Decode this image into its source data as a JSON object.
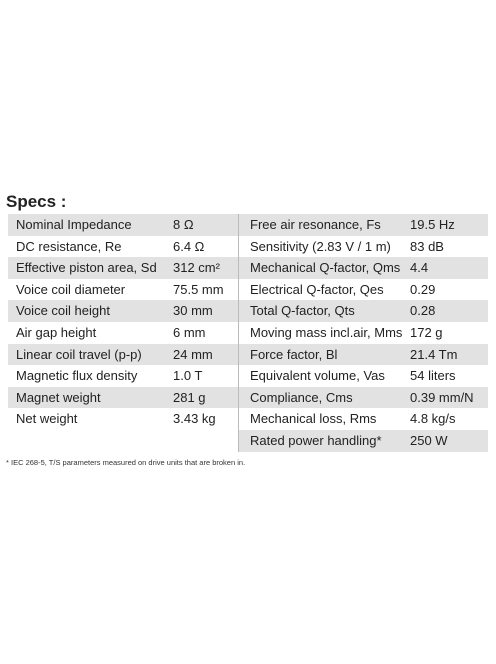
{
  "heading": "Specs :",
  "table": {
    "left": [
      [
        "Nominal Impedance",
        "8 Ω"
      ],
      [
        "DC resistance, Re",
        "6.4 Ω"
      ],
      [
        "Effective piston area, Sd",
        "312 cm²"
      ],
      [
        "Voice coil diameter",
        "75.5 mm"
      ],
      [
        "Voice coil height",
        "30 mm"
      ],
      [
        "Air gap height",
        "6 mm"
      ],
      [
        "Linear coil travel (p-p)",
        "24 mm"
      ],
      [
        "Magnetic flux density",
        "1.0 T"
      ],
      [
        "Magnet weight",
        "281 g"
      ],
      [
        "Net weight",
        "3.43 kg"
      ]
    ],
    "right": [
      [
        "Free air resonance, Fs",
        "19.5 Hz"
      ],
      [
        "Sensitivity (2.83 V / 1 m)",
        "83 dB"
      ],
      [
        "Mechanical Q-factor, Qms",
        "4.4"
      ],
      [
        "Electrical Q-factor, Qes",
        "0.29"
      ],
      [
        "Total Q-factor, Qts",
        "0.28"
      ],
      [
        "Moving mass incl.air, Mms",
        "172 g"
      ],
      [
        "Force factor, Bl",
        "21.4 Tm"
      ],
      [
        "Equivalent volume, Vas",
        "54 liters"
      ],
      [
        "Compliance, Cms",
        "0.39 mm/N"
      ],
      [
        "Mechanical loss, Rms",
        "4.8 kg/s"
      ],
      [
        "Rated power handling*",
        "250 W"
      ]
    ]
  },
  "footnote": "* IEC 268-5, T/S parameters measured on drive units that are broken in."
}
